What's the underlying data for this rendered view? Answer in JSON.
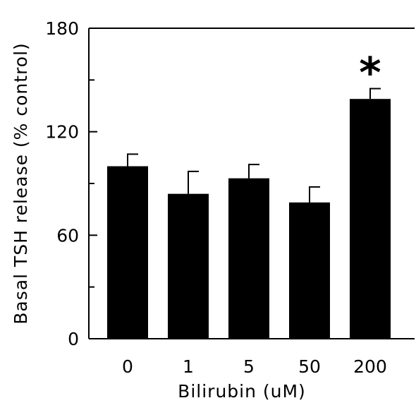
{
  "chart_data": {
    "type": "bar",
    "title": "",
    "xlabel": "Bilirubin (uM)",
    "ylabel": "Basal TSH release (% control)",
    "categories": [
      "0",
      "1",
      "5",
      "50",
      "200"
    ],
    "values": [
      100,
      84,
      93,
      79,
      139
    ],
    "errors": [
      7,
      13,
      8,
      9,
      6
    ],
    "ylim": [
      0,
      180
    ],
    "yticks": [
      0,
      60,
      120,
      180
    ],
    "yminor_ticks": [
      30,
      90,
      150
    ],
    "annotations": [
      {
        "category": "200",
        "text": "*"
      }
    ],
    "bar_color": "#000000",
    "grid": false,
    "legend": "none"
  }
}
